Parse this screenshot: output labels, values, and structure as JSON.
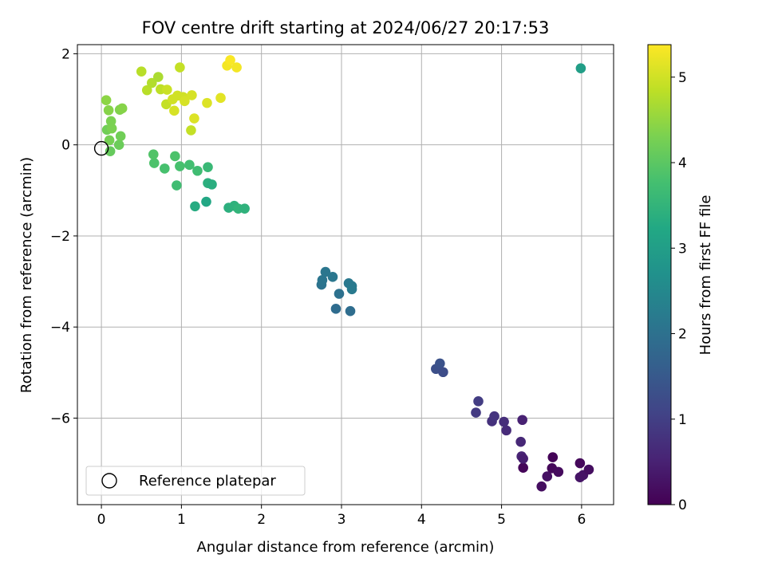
{
  "chart_data": {
    "type": "scatter",
    "title": "FOV centre drift starting at 2024/06/27 20:17:53",
    "xlabel": "Angular distance from reference (arcmin)",
    "ylabel": "Rotation from reference (arcmin)",
    "xlim": [
      -0.3,
      6.4
    ],
    "ylim": [
      -7.9,
      2.2
    ],
    "xticks": [
      0,
      1,
      2,
      3,
      4,
      5,
      6
    ],
    "xtick_labels": [
      "0",
      "1",
      "2",
      "3",
      "4",
      "5",
      "6"
    ],
    "yticks": [
      2,
      0,
      -2,
      -4,
      -6
    ],
    "ytick_labels": [
      "2",
      "0",
      "−2",
      "−4",
      "−6"
    ],
    "grid": true,
    "legend": {
      "placement": "lower-left",
      "entries": [
        {
          "label": "Reference platepar",
          "marker": "open-circle"
        }
      ]
    },
    "reference_point": {
      "x": 0,
      "y": 0
    },
    "colorbar": {
      "label": "Hours from first FF file",
      "min": 0,
      "max": 5.38,
      "ticks": [
        0,
        1,
        2,
        3,
        4,
        5
      ],
      "tick_labels": [
        "0",
        "1",
        "2",
        "3",
        "4",
        "5"
      ],
      "colormap": "viridis"
    },
    "points": [
      {
        "x": 5.5,
        "y": -7.5,
        "c": 0.2
      },
      {
        "x": 5.57,
        "y": -7.28,
        "c": 0.25
      },
      {
        "x": 5.63,
        "y": -7.1,
        "c": 0.1
      },
      {
        "x": 5.64,
        "y": -6.86,
        "c": 0.05
      },
      {
        "x": 5.71,
        "y": -7.18,
        "c": 0.15
      },
      {
        "x": 5.98,
        "y": -6.99,
        "c": 0.12
      },
      {
        "x": 5.98,
        "y": -7.3,
        "c": 0.3
      },
      {
        "x": 6.02,
        "y": -7.25,
        "c": 0.28
      },
      {
        "x": 6.09,
        "y": -7.13,
        "c": 0.2
      },
      {
        "x": 5.27,
        "y": -7.09,
        "c": 0.08
      },
      {
        "x": 5.25,
        "y": -6.84,
        "c": 0.55
      },
      {
        "x": 5.27,
        "y": -6.89,
        "c": 0.45
      },
      {
        "x": 5.24,
        "y": -6.52,
        "c": 0.6
      },
      {
        "x": 5.26,
        "y": -6.04,
        "c": 0.5
      },
      {
        "x": 5.06,
        "y": -6.27,
        "c": 0.65
      },
      {
        "x": 5.03,
        "y": -6.08,
        "c": 0.7
      },
      {
        "x": 4.88,
        "y": -6.07,
        "c": 0.75
      },
      {
        "x": 4.91,
        "y": -5.96,
        "c": 0.8
      },
      {
        "x": 4.68,
        "y": -5.88,
        "c": 0.9
      },
      {
        "x": 4.71,
        "y": -5.63,
        "c": 0.95
      },
      {
        "x": 4.18,
        "y": -4.92,
        "c": 1.3
      },
      {
        "x": 4.23,
        "y": -4.8,
        "c": 1.35
      },
      {
        "x": 4.27,
        "y": -4.99,
        "c": 1.25
      },
      {
        "x": 2.93,
        "y": -3.6,
        "c": 1.9
      },
      {
        "x": 3.11,
        "y": -3.65,
        "c": 1.92
      },
      {
        "x": 2.97,
        "y": -3.27,
        "c": 2.0
      },
      {
        "x": 2.75,
        "y": -3.07,
        "c": 2.05
      },
      {
        "x": 2.76,
        "y": -2.97,
        "c": 2.08
      },
      {
        "x": 2.8,
        "y": -2.79,
        "c": 2.1
      },
      {
        "x": 2.89,
        "y": -2.9,
        "c": 2.12
      },
      {
        "x": 3.09,
        "y": -3.04,
        "c": 2.15
      },
      {
        "x": 3.13,
        "y": -3.1,
        "c": 2.18
      },
      {
        "x": 3.13,
        "y": -3.17,
        "c": 2.2
      },
      {
        "x": 5.99,
        "y": 1.68,
        "c": 3.0
      },
      {
        "x": 1.17,
        "y": -1.35,
        "c": 3.3
      },
      {
        "x": 1.31,
        "y": -1.25,
        "c": 3.2
      },
      {
        "x": 1.33,
        "y": -0.84,
        "c": 3.4
      },
      {
        "x": 1.38,
        "y": -0.87,
        "c": 3.35
      },
      {
        "x": 1.59,
        "y": -1.38,
        "c": 3.4
      },
      {
        "x": 1.66,
        "y": -1.34,
        "c": 3.45
      },
      {
        "x": 1.71,
        "y": -1.4,
        "c": 3.5
      },
      {
        "x": 1.79,
        "y": -1.4,
        "c": 3.45
      },
      {
        "x": 1.33,
        "y": -0.49,
        "c": 3.6
      },
      {
        "x": 1.2,
        "y": -0.57,
        "c": 3.7
      },
      {
        "x": 1.1,
        "y": -0.44,
        "c": 3.75
      },
      {
        "x": 0.98,
        "y": -0.47,
        "c": 3.8
      },
      {
        "x": 0.92,
        "y": -0.25,
        "c": 3.85
      },
      {
        "x": 0.94,
        "y": -0.89,
        "c": 3.7
      },
      {
        "x": 0.79,
        "y": -0.52,
        "c": 3.8
      },
      {
        "x": 0.66,
        "y": -0.4,
        "c": 3.85
      },
      {
        "x": 0.65,
        "y": -0.21,
        "c": 3.9
      },
      {
        "x": 0.11,
        "y": -0.14,
        "c": 4.1
      },
      {
        "x": 0.22,
        "y": 0.0,
        "c": 4.15
      },
      {
        "x": 0.24,
        "y": 0.19,
        "c": 4.2
      },
      {
        "x": 0.1,
        "y": 0.1,
        "c": 4.25
      },
      {
        "x": 0.07,
        "y": 0.33,
        "c": 4.2
      },
      {
        "x": 0.13,
        "y": 0.36,
        "c": 4.3
      },
      {
        "x": 0.12,
        "y": 0.52,
        "c": 4.3
      },
      {
        "x": 0.09,
        "y": 0.76,
        "c": 4.4
      },
      {
        "x": 0.06,
        "y": 0.98,
        "c": 4.45
      },
      {
        "x": 0.23,
        "y": 0.77,
        "c": 4.35
      },
      {
        "x": 0.26,
        "y": 0.8,
        "c": 4.4
      },
      {
        "x": 0.5,
        "y": 1.61,
        "c": 4.8
      },
      {
        "x": 0.57,
        "y": 1.2,
        "c": 4.8
      },
      {
        "x": 0.63,
        "y": 1.36,
        "c": 4.75
      },
      {
        "x": 0.71,
        "y": 1.49,
        "c": 4.7
      },
      {
        "x": 0.74,
        "y": 1.22,
        "c": 4.85
      },
      {
        "x": 0.81,
        "y": 0.89,
        "c": 4.9
      },
      {
        "x": 0.82,
        "y": 1.21,
        "c": 4.95
      },
      {
        "x": 0.89,
        "y": 1.0,
        "c": 5.0
      },
      {
        "x": 0.91,
        "y": 0.75,
        "c": 5.05
      },
      {
        "x": 0.95,
        "y": 1.08,
        "c": 5.0
      },
      {
        "x": 0.98,
        "y": 1.7,
        "c": 4.9
      },
      {
        "x": 1.02,
        "y": 1.05,
        "c": 5.0
      },
      {
        "x": 1.04,
        "y": 0.96,
        "c": 5.05
      },
      {
        "x": 1.12,
        "y": 0.32,
        "c": 4.9
      },
      {
        "x": 1.13,
        "y": 1.09,
        "c": 5.05
      },
      {
        "x": 1.16,
        "y": 0.58,
        "c": 5.1
      },
      {
        "x": 1.32,
        "y": 0.92,
        "c": 5.1
      },
      {
        "x": 1.49,
        "y": 1.03,
        "c": 5.15
      },
      {
        "x": 1.57,
        "y": 1.74,
        "c": 5.3
      },
      {
        "x": 1.61,
        "y": 1.86,
        "c": 5.35
      },
      {
        "x": 1.69,
        "y": 1.7,
        "c": 5.3
      }
    ]
  }
}
